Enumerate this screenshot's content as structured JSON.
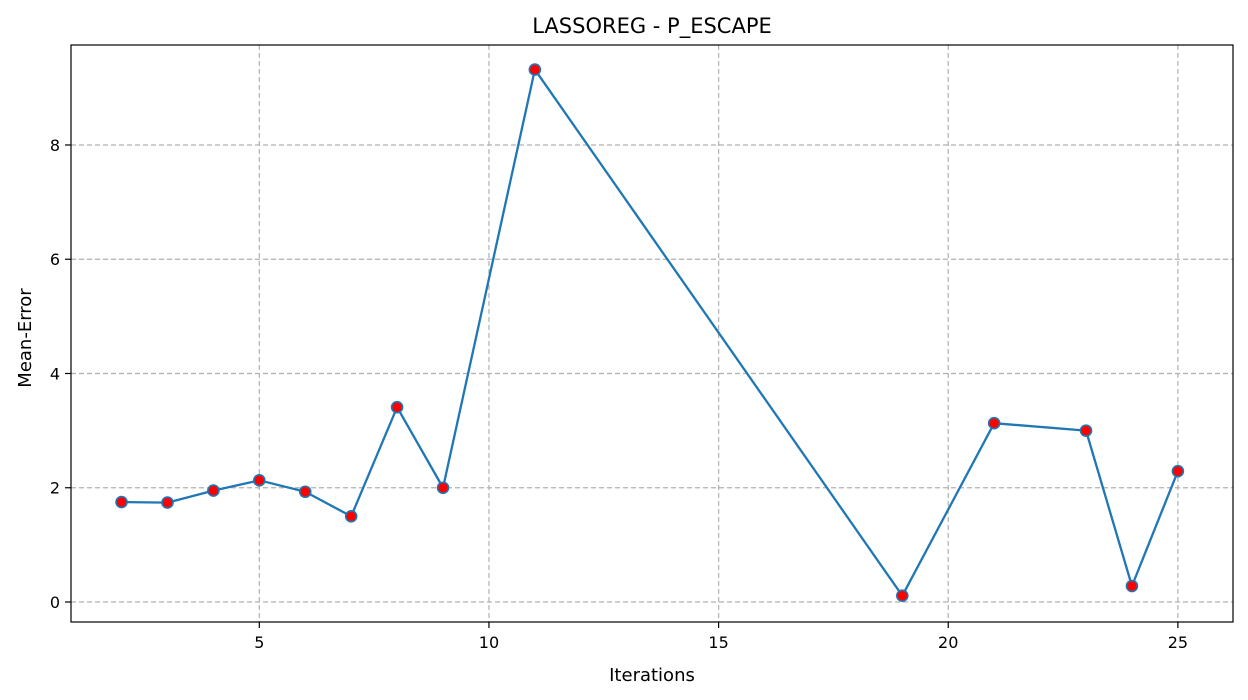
{
  "chart_data": {
    "type": "line",
    "title": "LASSOREG - P_ESCAPE",
    "xlabel": "Iterations",
    "ylabel": "Mean-Error",
    "xlim": [
      0.9,
      26.2
    ],
    "ylim": [
      -0.35,
      9.75
    ],
    "xticks": [
      5,
      10,
      15,
      20,
      25
    ],
    "yticks": [
      0,
      2,
      4,
      6,
      8
    ],
    "grid": true,
    "series": [
      {
        "x": [
          2,
          3,
          4,
          5,
          6,
          7,
          8,
          9,
          11,
          19,
          21,
          23,
          24,
          25
        ],
        "values": [
          1.75,
          1.74,
          1.95,
          2.13,
          1.93,
          1.5,
          3.41,
          2.0,
          9.32,
          0.11,
          3.13,
          3.0,
          0.28,
          2.29
        ],
        "line_color": "#1f77b4",
        "marker_color": "#ff0000"
      }
    ]
  }
}
